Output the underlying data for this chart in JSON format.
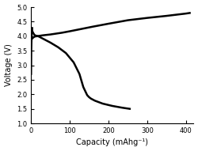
{
  "title": "",
  "xlabel": "Capacity (mAhg⁻¹)",
  "ylabel": "Voltage (V)",
  "xlim": [
    0,
    420
  ],
  "ylim": [
    1.0,
    5.0
  ],
  "xticks": [
    0,
    100,
    200,
    300,
    400
  ],
  "yticks": [
    1.0,
    1.5,
    2.0,
    2.5,
    3.0,
    3.5,
    4.0,
    4.5,
    5.0
  ],
  "line_color": "#000000",
  "line_width": 1.8,
  "bg_color": "#ffffff",
  "charge_curve": {
    "x": [
      0,
      3,
      6,
      10,
      15,
      20,
      30,
      50,
      80,
      100,
      130,
      160,
      200,
      250,
      300,
      350,
      400,
      410
    ],
    "y": [
      3.88,
      3.92,
      3.96,
      3.99,
      4.0,
      4.01,
      4.03,
      4.06,
      4.12,
      4.17,
      4.25,
      4.33,
      4.43,
      4.55,
      4.63,
      4.7,
      4.78,
      4.8
    ]
  },
  "discharge_curve": {
    "x": [
      0,
      2,
      4,
      6,
      8,
      10,
      15,
      20,
      30,
      50,
      70,
      90,
      110,
      125,
      135,
      145,
      150,
      155,
      165,
      185,
      210,
      235,
      255
    ],
    "y": [
      4.28,
      4.22,
      4.15,
      4.1,
      4.06,
      4.03,
      4.01,
      3.99,
      3.92,
      3.78,
      3.62,
      3.42,
      3.1,
      2.7,
      2.25,
      1.97,
      1.9,
      1.85,
      1.78,
      1.68,
      1.6,
      1.54,
      1.5
    ]
  },
  "initial_spike": {
    "x": [
      0,
      0.5,
      1.0,
      2.0,
      3.0
    ],
    "y": [
      2.7,
      3.5,
      3.8,
      4.1,
      4.28
    ]
  }
}
